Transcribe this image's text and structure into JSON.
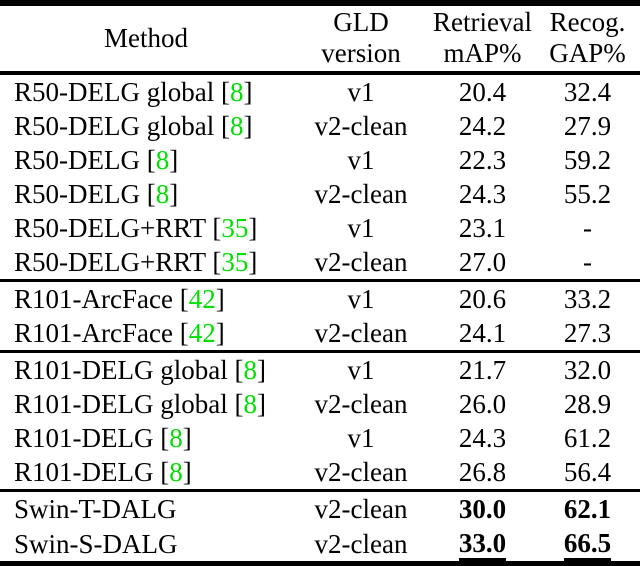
{
  "table": {
    "header": {
      "method": "Method",
      "gld_line1": "GLD",
      "gld_line2": "version",
      "retrieval_line1": "Retrieval",
      "retrieval_line2": "mAP%",
      "recog_line1": "Recog.",
      "recog_line2": "GAP%"
    },
    "citation_color": "#00e000",
    "citation_brackets": {
      "open": "[",
      "close": "]"
    },
    "groups": [
      {
        "name": "r50-delg-group",
        "rows": [
          {
            "method": "R50-DELG global",
            "cite": "8",
            "version": "v1",
            "map": "20.4",
            "gap": "32.4",
            "bold": false,
            "underline": false
          },
          {
            "method": "R50-DELG global",
            "cite": "8",
            "version": "v2-clean",
            "map": "24.2",
            "gap": "27.9",
            "bold": false,
            "underline": false
          },
          {
            "method": "R50-DELG",
            "cite": "8",
            "version": "v1",
            "map": "22.3",
            "gap": "59.2",
            "bold": false,
            "underline": false
          },
          {
            "method": "R50-DELG",
            "cite": "8",
            "version": "v2-clean",
            "map": "24.3",
            "gap": "55.2",
            "bold": false,
            "underline": false
          },
          {
            "method": "R50-DELG+RRT",
            "cite": "35",
            "version": "v1",
            "map": "23.1",
            "gap": "-",
            "bold": false,
            "underline": false
          },
          {
            "method": "R50-DELG+RRT",
            "cite": "35",
            "version": "v2-clean",
            "map": "27.0",
            "gap": "-",
            "bold": false,
            "underline": false
          }
        ]
      },
      {
        "name": "r101-arcface-group",
        "rows": [
          {
            "method": "R101-ArcFace",
            "cite": "42",
            "version": "v1",
            "map": "20.6",
            "gap": "33.2",
            "bold": false,
            "underline": false
          },
          {
            "method": "R101-ArcFace",
            "cite": "42",
            "version": "v2-clean",
            "map": "24.1",
            "gap": "27.3",
            "bold": false,
            "underline": false
          }
        ]
      },
      {
        "name": "r101-delg-group",
        "rows": [
          {
            "method": "R101-DELG global",
            "cite": "8",
            "version": "v1",
            "map": "21.7",
            "gap": "32.0",
            "bold": false,
            "underline": false
          },
          {
            "method": "R101-DELG global",
            "cite": "8",
            "version": "v2-clean",
            "map": "26.0",
            "gap": "28.9",
            "bold": false,
            "underline": false
          },
          {
            "method": "R101-DELG",
            "cite": "8",
            "version": "v1",
            "map": "24.3",
            "gap": "61.2",
            "bold": false,
            "underline": false
          },
          {
            "method": "R101-DELG",
            "cite": "8",
            "version": "v2-clean",
            "map": "26.8",
            "gap": "56.4",
            "bold": false,
            "underline": false
          }
        ]
      },
      {
        "name": "dalg-group",
        "rows": [
          {
            "method": "Swin-T-DALG",
            "cite": null,
            "version": "v2-clean",
            "map": "30.0",
            "gap": "62.1",
            "bold": true,
            "underline": false
          },
          {
            "method": "Swin-S-DALG",
            "cite": null,
            "version": "v2-clean",
            "map": "33.0",
            "gap": "66.5",
            "bold": true,
            "underline": true
          }
        ]
      }
    ]
  }
}
